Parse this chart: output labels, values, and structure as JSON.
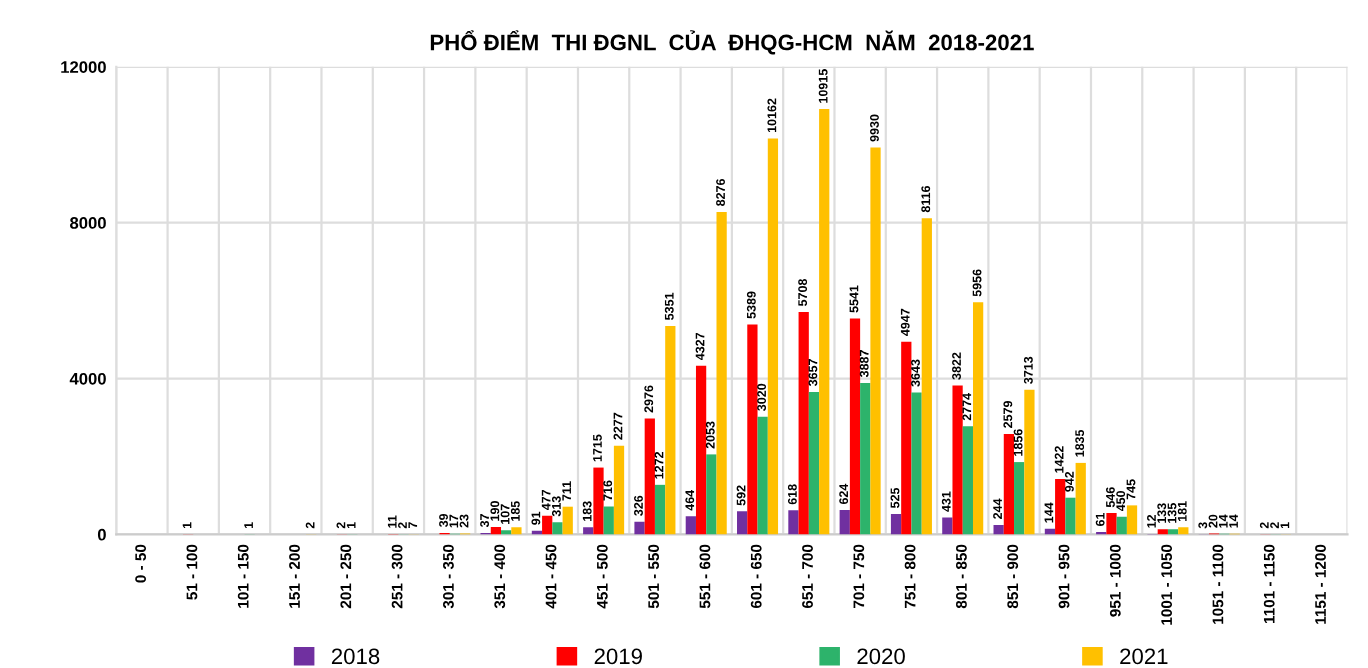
{
  "chart_data": {
    "type": "bar",
    "title": "PHỔ ĐIỂM  THI ĐGNL  CỦA  ĐHQG-HCM  NĂM  2018-2021",
    "categories": [
      "0 - 50",
      "51 - 100",
      "101 - 150",
      "151 - 200",
      "201 - 250",
      "251 - 300",
      "301 - 350",
      "351 - 400",
      "401 - 450",
      "451 - 500",
      "501 - 550",
      "551 - 600",
      "601 - 650",
      "651 - 700",
      "701 - 750",
      "751 - 800",
      "801 - 850",
      "851 - 900",
      "901 - 950",
      "951 - 1000",
      "1001 - 1050",
      "1051 - 1100",
      "1101 - 1150",
      "1151 - 1200"
    ],
    "series": [
      {
        "name": "2018",
        "color": "#7030a0",
        "values": [
          null,
          null,
          null,
          null,
          null,
          null,
          null,
          37,
          91,
          183,
          326,
          464,
          592,
          618,
          624,
          525,
          431,
          244,
          144,
          61,
          12,
          3,
          null,
          null
        ]
      },
      {
        "name": "2019",
        "color": "#ff0000",
        "values": [
          null,
          1,
          null,
          null,
          2,
          11,
          39,
          190,
          477,
          1715,
          2976,
          4327,
          5389,
          5708,
          5541,
          4947,
          3822,
          2579,
          1422,
          546,
          133,
          20,
          2,
          null
        ]
      },
      {
        "name": "2020",
        "color": "#2db36b",
        "values": [
          null,
          null,
          1,
          null,
          1,
          2,
          17,
          107,
          313,
          716,
          1272,
          2053,
          3020,
          3657,
          3887,
          3643,
          2774,
          1856,
          942,
          450,
          135,
          14,
          2,
          null
        ]
      },
      {
        "name": "2021",
        "color": "#ffc000",
        "values": [
          null,
          null,
          null,
          2,
          null,
          7,
          23,
          185,
          711,
          2277,
          5351,
          8276,
          10162,
          10915,
          9930,
          8116,
          5956,
          3713,
          1835,
          745,
          181,
          14,
          1,
          null
        ]
      }
    ],
    "ylim": [
      0,
      12000
    ],
    "yticks": [
      0,
      4000,
      8000,
      12000
    ],
    "grid": true,
    "legend": "bottom",
    "data_labels": true
  }
}
